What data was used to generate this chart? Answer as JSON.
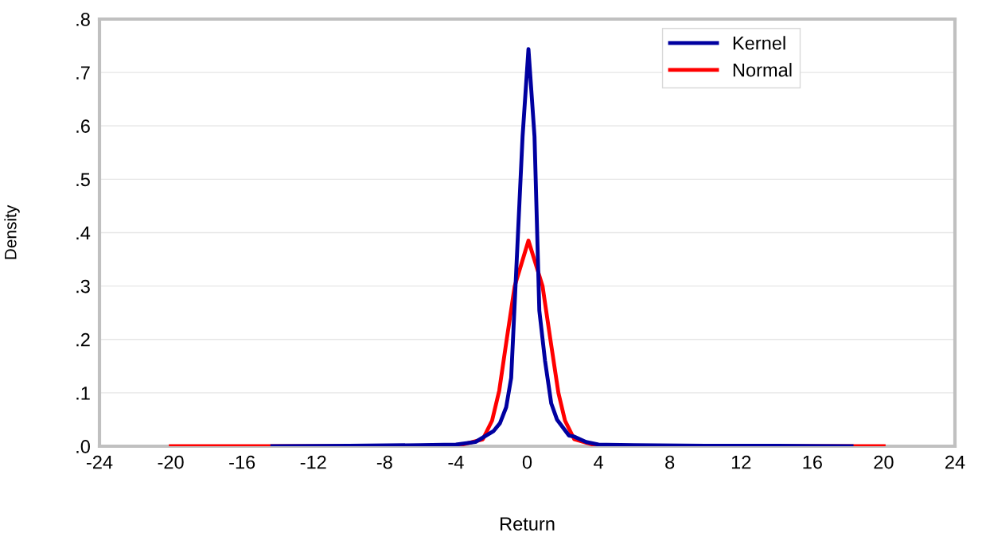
{
  "chart_data": {
    "type": "line",
    "xlabel": "Return",
    "ylabel": "Density",
    "xlim": [
      -24,
      24
    ],
    "xticks": [
      -24,
      -20,
      -16,
      -12,
      -8,
      -4,
      0,
      4,
      8,
      12,
      16,
      20,
      24
    ],
    "ylim": [
      0,
      0.8
    ],
    "yticks": [
      {
        "value": 0,
        "label": ".0"
      },
      {
        "value": 0.1,
        "label": ".1"
      },
      {
        "value": 0.2,
        "label": ".2"
      },
      {
        "value": 0.3,
        "label": ".3"
      },
      {
        "value": 0.4,
        "label": ".4"
      },
      {
        "value": 0.5,
        "label": ".5"
      },
      {
        "value": 0.6,
        "label": ".6"
      },
      {
        "value": 0.7,
        "label": ".7"
      },
      {
        "value": 0.8,
        "label": ".8"
      }
    ],
    "grid": "y",
    "legend": "top right",
    "marker": "none",
    "line_style": "solid",
    "series": [
      {
        "name": "Kernel",
        "color": "#0000a0",
        "x": [
          -14.3,
          -10,
          -6,
          -4,
          -2.9,
          -1.9,
          -1.53,
          -1.18,
          -0.9,
          -0.26,
          0.07,
          0.41,
          0.68,
          1.0,
          1.35,
          1.67,
          2.34,
          2.64,
          3.3,
          4,
          6,
          10,
          14,
          18.2
        ],
        "values": [
          0.0,
          0.001,
          0.002,
          0.003,
          0.008,
          0.028,
          0.043,
          0.073,
          0.128,
          0.58,
          0.744,
          0.58,
          0.254,
          0.16,
          0.08,
          0.05,
          0.02,
          0.018,
          0.008,
          0.003,
          0.002,
          0.001,
          0.001,
          0.0
        ]
      },
      {
        "name": "Normal",
        "color": "#ff0000",
        "x": [
          -20,
          -12,
          -4,
          -2.49,
          -1.97,
          -1.57,
          -1.15,
          -0.7,
          0.07,
          0.86,
          1.3,
          1.75,
          2.12,
          2.64,
          4,
          12,
          20
        ],
        "values": [
          0.0,
          0.0,
          0.0,
          0.013,
          0.048,
          0.104,
          0.2,
          0.3,
          0.385,
          0.3,
          0.2,
          0.1,
          0.048,
          0.013,
          0.0,
          0.0,
          0.0
        ]
      }
    ]
  }
}
